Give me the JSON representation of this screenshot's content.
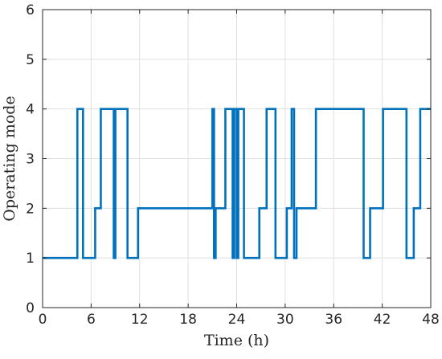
{
  "chart_data": {
    "type": "line",
    "step": true,
    "xlabel": "Time (h)",
    "ylabel": "Operating mode",
    "xlim": [
      0,
      48
    ],
    "ylim": [
      0,
      6
    ],
    "xticks": [
      "0",
      "6",
      "12",
      "18",
      "24",
      "30",
      "36",
      "42",
      "48"
    ],
    "yticks": [
      "0",
      "1",
      "2",
      "3",
      "4",
      "5",
      "6"
    ],
    "grid": true,
    "color": "#0072bd",
    "series": [
      {
        "x": [
          0,
          4.3,
          5.0,
          6.5,
          7.2,
          8.8,
          9.0,
          10.5,
          11.8,
          21.0,
          21.2,
          21.4,
          22.6,
          23.5,
          23.7,
          24.0,
          24.2,
          24.9,
          26.8,
          27.7,
          28.8,
          30.2,
          30.8,
          31.1,
          31.4,
          33.8,
          39.7,
          40.5,
          42.1,
          45.0,
          45.9,
          46.7,
          48
        ],
        "y": [
          1,
          4,
          1,
          2,
          4,
          1,
          4,
          1,
          2,
          4,
          1,
          2,
          4,
          1,
          4,
          1,
          4,
          1,
          2,
          4,
          1,
          2,
          4,
          1,
          2,
          4,
          1,
          2,
          4,
          1,
          2,
          4,
          4
        ]
      }
    ]
  }
}
